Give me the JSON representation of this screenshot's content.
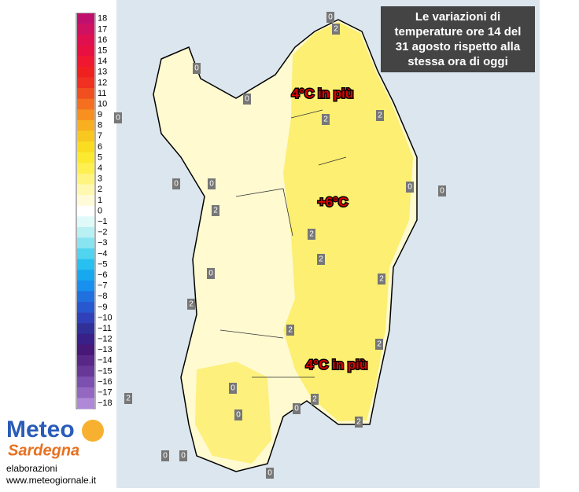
{
  "title": [
    "Le variazioni di",
    "temperature ore 14 del",
    "31 agosto rispetto alla",
    "stessa ora di oggi"
  ],
  "legend": [
    {
      "label": "18",
      "color": "#c0106e"
    },
    {
      "label": "17",
      "color": "#d01060"
    },
    {
      "label": "16",
      "color": "#e01050"
    },
    {
      "label": "15",
      "color": "#e81040"
    },
    {
      "label": "14",
      "color": "#f01830"
    },
    {
      "label": "13",
      "color": "#f02020"
    },
    {
      "label": "12",
      "color": "#f03020"
    },
    {
      "label": "11",
      "color": "#f05020"
    },
    {
      "label": "10",
      "color": "#f47020"
    },
    {
      "label": "9",
      "color": "#f89020"
    },
    {
      "label": "8",
      "color": "#f8b020"
    },
    {
      "label": "7",
      "color": "#f8c820"
    },
    {
      "label": "6",
      "color": "#fadc20"
    },
    {
      "label": "5",
      "color": "#fcea30"
    },
    {
      "label": "4",
      "color": "#fef050"
    },
    {
      "label": "3",
      "color": "#fff480"
    },
    {
      "label": "2",
      "color": "#fff8b0"
    },
    {
      "label": "1",
      "color": "#fffbd8"
    },
    {
      "label": "0",
      "color": "#ffffff"
    },
    {
      "label": "−1",
      "color": "#e0fafa"
    },
    {
      "label": "−2",
      "color": "#b8f0f4"
    },
    {
      "label": "−3",
      "color": "#88e4f0"
    },
    {
      "label": "−4",
      "color": "#50d4f0"
    },
    {
      "label": "−5",
      "color": "#28c0f0"
    },
    {
      "label": "−6",
      "color": "#18a8f0"
    },
    {
      "label": "−7",
      "color": "#1890f0"
    },
    {
      "label": "−8",
      "color": "#2070e0"
    },
    {
      "label": "−9",
      "color": "#2858d0"
    },
    {
      "label": "−10",
      "color": "#3040b8"
    },
    {
      "label": "−11",
      "color": "#303098"
    },
    {
      "label": "−12",
      "color": "#382088"
    },
    {
      "label": "−13",
      "color": "#481878"
    },
    {
      "label": "−14",
      "color": "#582888"
    },
    {
      "label": "−15",
      "color": "#683898"
    },
    {
      "label": "−16",
      "color": "#7c50b0"
    },
    {
      "label": "−17",
      "color": "#9468c0"
    },
    {
      "label": "−18",
      "color": "#b088d8"
    }
  ],
  "annotations": [
    "4°C in più",
    "+6°C",
    "4°C in più"
  ],
  "contour_labels": [
    "0",
    "2",
    "0",
    "0",
    "0",
    "2",
    "2",
    "0",
    "0",
    "0",
    "0",
    "2",
    "2",
    "2",
    "2",
    "2",
    "0",
    "2",
    "2",
    "0",
    "0",
    "2",
    "2",
    "0",
    "0",
    "2",
    "0",
    "0"
  ],
  "logo": {
    "line1": "Meteo",
    "line2": "Sardegna"
  },
  "credit": {
    "label": "elaborazioni",
    "url": "www.meteogiornale.it"
  }
}
